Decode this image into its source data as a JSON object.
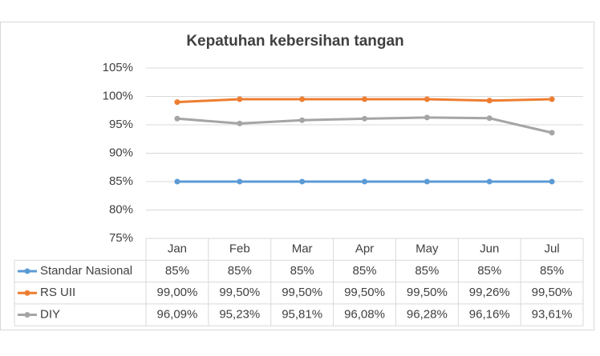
{
  "chart_data": {
    "type": "line",
    "title": "Kepatuhan kebersihan tangan",
    "categories": [
      "Jan",
      "Feb",
      "Mar",
      "Apr",
      "May",
      "Jun",
      "Jul"
    ],
    "ylim": [
      75,
      105
    ],
    "yticks": [
      {
        "value": 75,
        "label": "75%"
      },
      {
        "value": 80,
        "label": "80%"
      },
      {
        "value": 85,
        "label": "85%"
      },
      {
        "value": 90,
        "label": "90%"
      },
      {
        "value": 95,
        "label": "95%"
      },
      {
        "value": 100,
        "label": "100%"
      },
      {
        "value": 105,
        "label": "105%"
      }
    ],
    "grid": true,
    "series": [
      {
        "name": "Standar Nasional",
        "color": "#5b9bd5",
        "values": [
          85,
          85,
          85,
          85,
          85,
          85,
          85
        ],
        "value_labels": [
          "85%",
          "85%",
          "85%",
          "85%",
          "85%",
          "85%",
          "85%"
        ]
      },
      {
        "name": "RS UII",
        "color": "#ed7d31",
        "values": [
          99.0,
          99.5,
          99.5,
          99.5,
          99.5,
          99.26,
          99.5
        ],
        "value_labels": [
          "99,00%",
          "99,50%",
          "99,50%",
          "99,50%",
          "99,50%",
          "99,26%",
          "99,50%"
        ]
      },
      {
        "name": "DIY",
        "color": "#a5a5a5",
        "values": [
          96.09,
          95.23,
          95.81,
          96.08,
          96.28,
          96.16,
          93.61
        ],
        "value_labels": [
          "96,09%",
          "95,23%",
          "95,81%",
          "96,08%",
          "96,28%",
          "96,16%",
          "93,61%"
        ]
      }
    ]
  }
}
